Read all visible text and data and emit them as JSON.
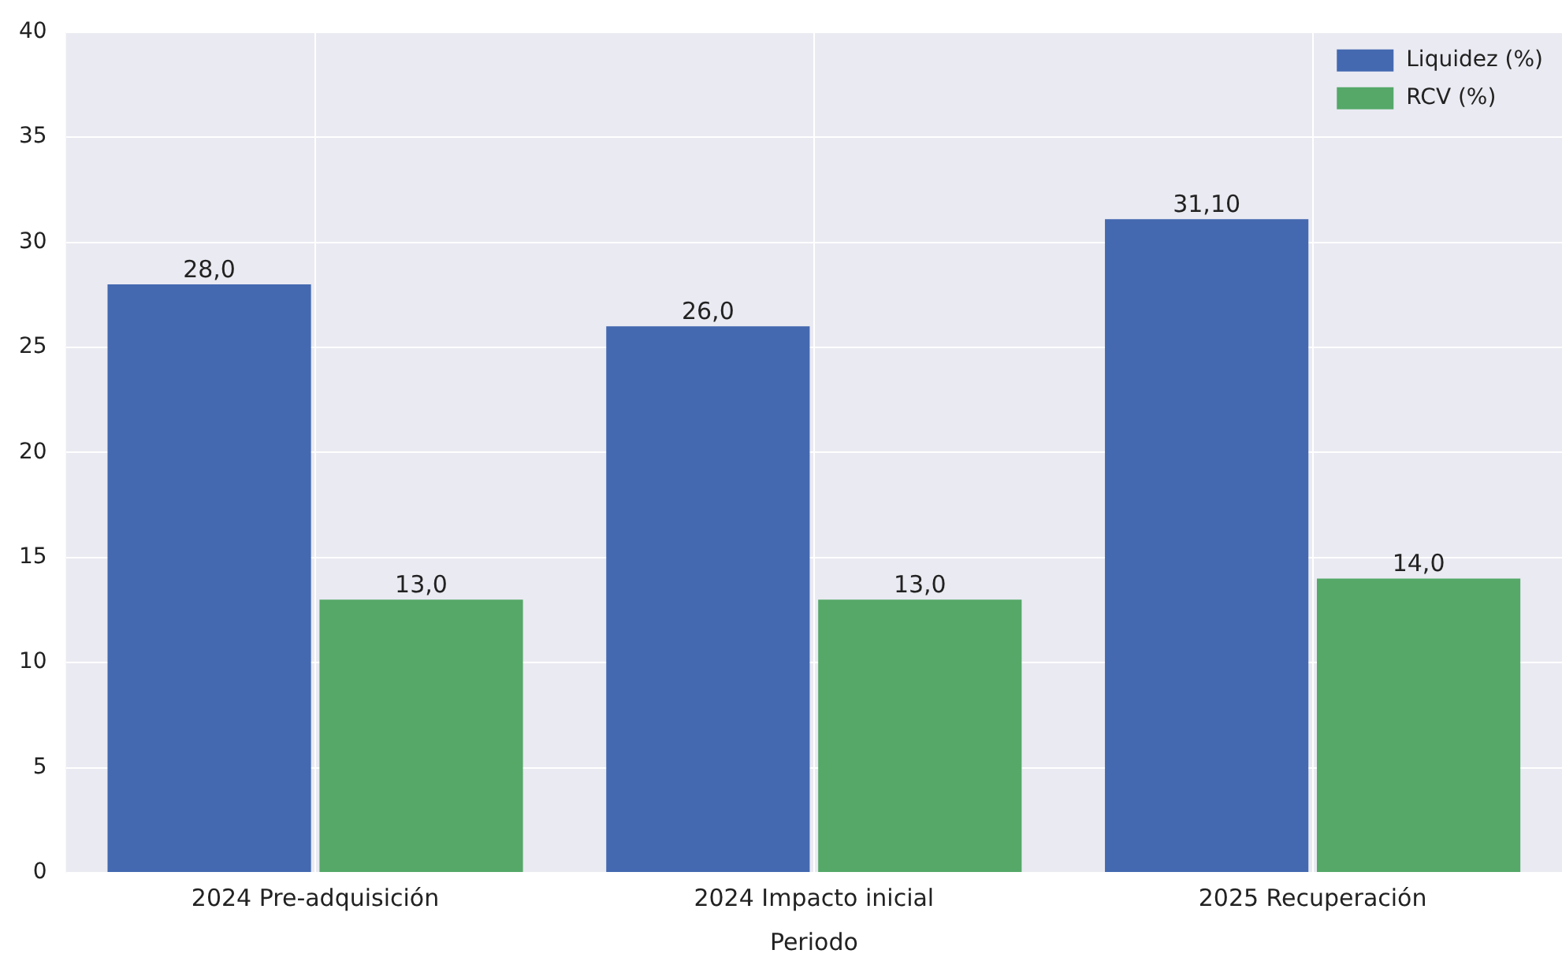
{
  "chart_data": {
    "type": "bar",
    "xlabel": "Periodo",
    "categories": [
      "2024 Pre-adquisición",
      "2024 Impacto inicial",
      "2025 Recuperación"
    ],
    "series": [
      {
        "name": "Liquidez (%)",
        "color": "#4469b0",
        "values": [
          28.0,
          26.0,
          31.1
        ],
        "value_labels": [
          "28,0",
          "26,0",
          "31,10"
        ]
      },
      {
        "name": "RCV (%)",
        "color": "#55a868",
        "values": [
          13.0,
          13.0,
          14.0
        ],
        "value_labels": [
          "13,0",
          "13,0",
          "14,0"
        ]
      }
    ],
    "ylim": [
      0,
      40
    ],
    "yticks": [
      0,
      5,
      10,
      15,
      20,
      25,
      30,
      35,
      40
    ],
    "grid": true,
    "legend": "top right"
  }
}
